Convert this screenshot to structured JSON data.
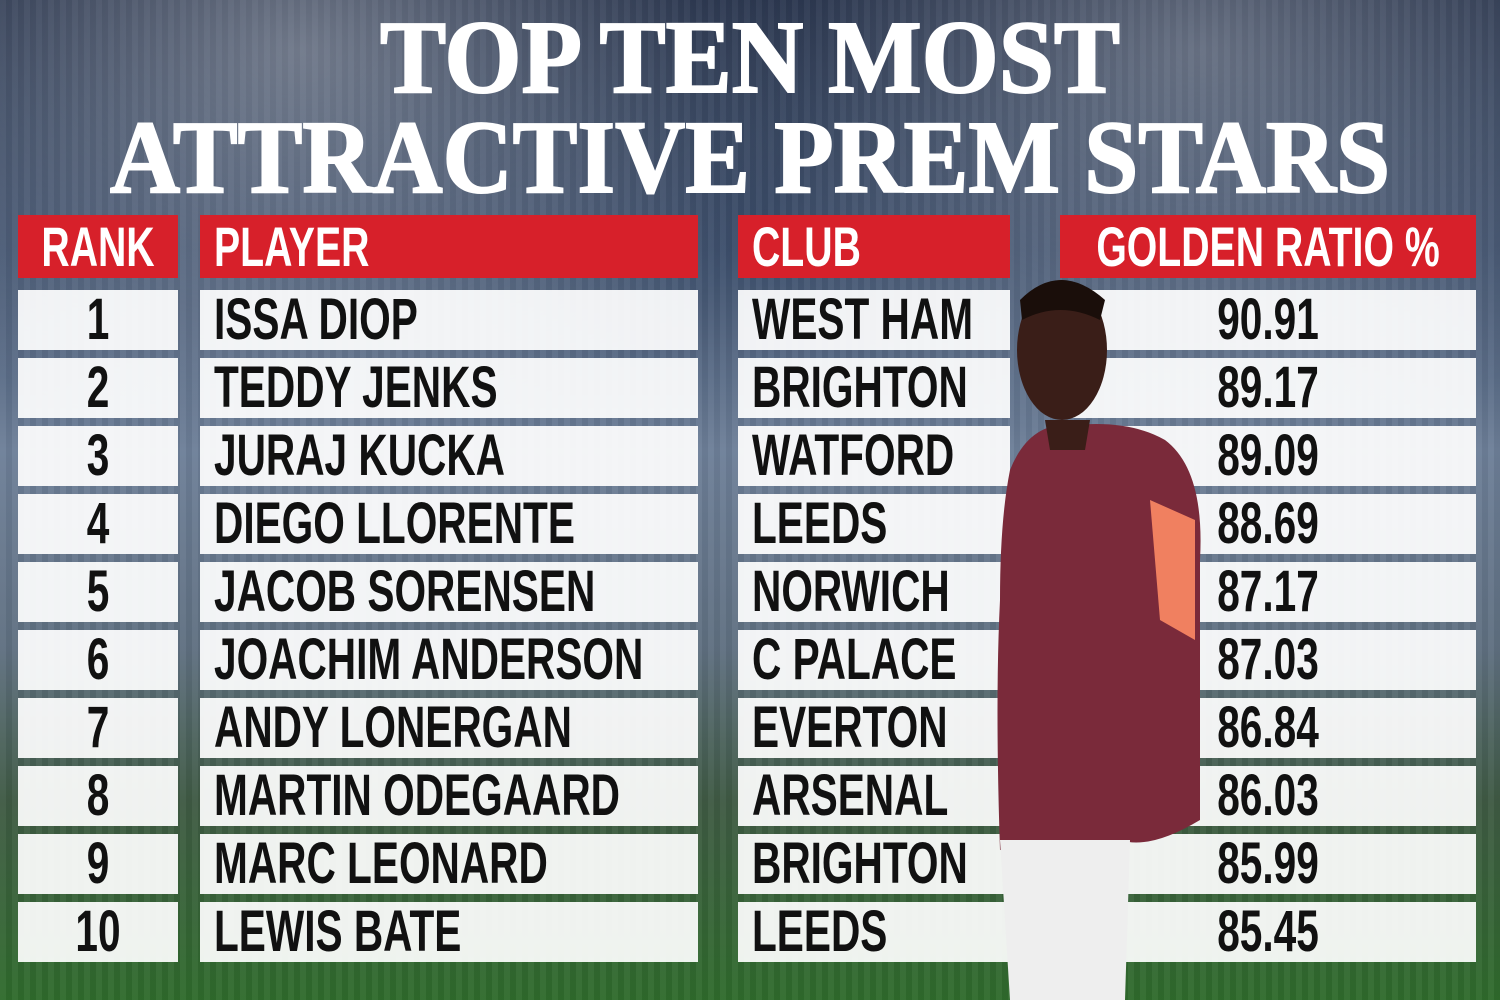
{
  "title": [
    "TOP TEN MOST",
    "ATTRACTIVE PREM STARS"
  ],
  "table": {
    "columns": [
      "RANK",
      "PLAYER",
      "CLUB",
      "GOLDEN RATIO %"
    ],
    "rows": [
      {
        "rank": 1,
        "player": "ISSA DIOP",
        "club": "WEST HAM",
        "golden_ratio": 90.91
      },
      {
        "rank": 2,
        "player": "TEDDY JENKS",
        "club": "BRIGHTON",
        "golden_ratio": 89.17
      },
      {
        "rank": 3,
        "player": "JURAJ KUCKA",
        "club": "WATFORD",
        "golden_ratio": 89.09
      },
      {
        "rank": 4,
        "player": "DIEGO LLORENTE",
        "club": "LEEDS",
        "golden_ratio": 88.69
      },
      {
        "rank": 5,
        "player": "JACOB SORENSEN",
        "club": "NORWICH",
        "golden_ratio": 87.17
      },
      {
        "rank": 6,
        "player": "JOACHIM ANDERSON",
        "club": "C PALACE",
        "golden_ratio": 87.03
      },
      {
        "rank": 7,
        "player": "ANDY LONERGAN",
        "club": "EVERTON",
        "golden_ratio": 86.84
      },
      {
        "rank": 8,
        "player": "MARTIN ODEGAARD",
        "club": "ARSENAL",
        "golden_ratio": 86.03
      },
      {
        "rank": 9,
        "player": "MARC LEONARD",
        "club": "BRIGHTON",
        "golden_ratio": 85.99
      },
      {
        "rank": 10,
        "player": "LEWIS BATE",
        "club": "LEEDS",
        "golden_ratio": 85.45
      }
    ]
  }
}
